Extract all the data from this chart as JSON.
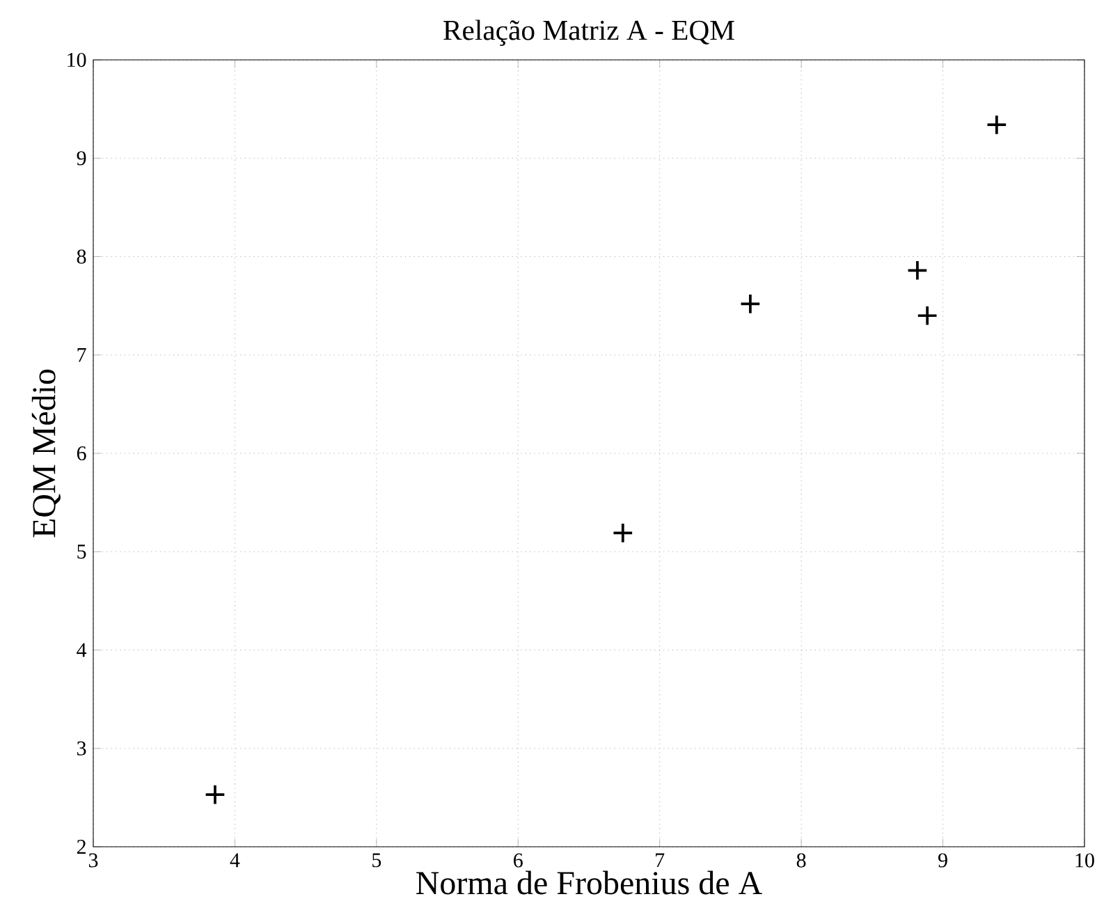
{
  "chart_data": {
    "type": "scatter",
    "title": "Relação Matriz A - EQM",
    "xlabel": "Norma de Frobenius de A",
    "ylabel": "EQM Médio",
    "x": [
      3.86,
      6.74,
      7.64,
      8.82,
      8.89,
      9.38
    ],
    "series": [
      {
        "color": "#000000",
        "values": [
          2.53,
          5.19,
          7.52,
          7.86,
          7.4,
          9.34
        ]
      }
    ],
    "xlim": [
      3,
      10
    ],
    "ylim": [
      2,
      10
    ],
    "xticks": [
      3,
      4,
      5,
      6,
      7,
      8,
      9,
      10
    ],
    "yticks": [
      2,
      3,
      4,
      5,
      6,
      7,
      8,
      9,
      10
    ],
    "grid": true,
    "marker": "cross"
  }
}
